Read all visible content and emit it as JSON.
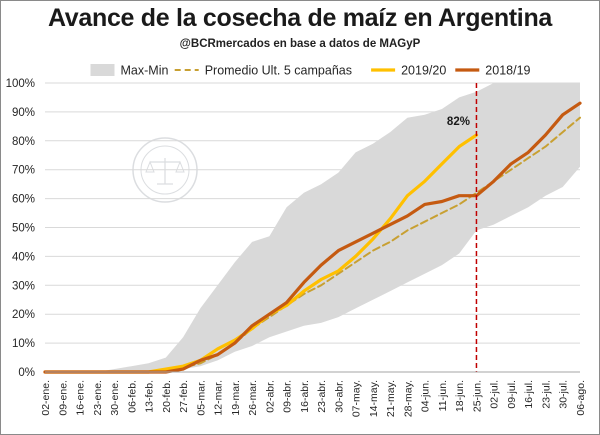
{
  "title": "Avance de la cosecha de maíz en Argentina",
  "subtitle": "@BCRmercados en base a datos de MAGyP",
  "chart_data": {
    "type": "line",
    "title": "Avance de la cosecha de maíz en Argentina",
    "subtitle": "@BCRmercados en base a datos de MAGyP",
    "xlabel": "",
    "ylabel": "",
    "ylim": [
      0,
      100
    ],
    "y_ticks": [
      "0%",
      "10%",
      "20%",
      "30%",
      "40%",
      "50%",
      "60%",
      "70%",
      "80%",
      "90%",
      "100%"
    ],
    "x": [
      "02-ene.",
      "09-ene.",
      "16-ene.",
      "23-ene.",
      "30-ene.",
      "06-feb.",
      "13-feb.",
      "20-feb.",
      "27-feb.",
      "05-mar.",
      "12-mar.",
      "19-mar.",
      "26-mar.",
      "02-abr.",
      "09-abr.",
      "16-abr.",
      "23-abr.",
      "30-abr.",
      "07-may.",
      "14-may.",
      "21-may.",
      "28-may.",
      "04-jun.",
      "11-jun.",
      "18-jun.",
      "25-jun.",
      "02-jul.",
      "09-jul.",
      "16-jul.",
      "23-jul.",
      "30-jul.",
      "06-ago."
    ],
    "band": {
      "name": "Max-Min",
      "color": "#d9d9d9",
      "max": [
        0,
        0,
        0,
        0,
        1,
        2,
        3,
        5,
        12,
        22,
        30,
        38,
        45,
        47,
        57,
        62,
        65,
        69,
        76,
        79,
        83,
        88,
        89,
        91,
        95,
        97,
        100,
        100,
        100,
        100,
        100,
        100
      ],
      "min": [
        0,
        0,
        0,
        0,
        0,
        0,
        0,
        0,
        1,
        2,
        4,
        7,
        9,
        12,
        14,
        16,
        17,
        19,
        22,
        25,
        28,
        31,
        34,
        37,
        41,
        49,
        51,
        54,
        57,
        61,
        64,
        71
      ]
    },
    "series": [
      {
        "name": "Promedio Ult. 5 campañas",
        "color": "#c8a032",
        "dash": true,
        "values": [
          0,
          0,
          0,
          0,
          0,
          0,
          0,
          0.5,
          1.5,
          3,
          6,
          10,
          15,
          19,
          23,
          27,
          30,
          34,
          38,
          42,
          45,
          49,
          52,
          55,
          58,
          62,
          66,
          70,
          74,
          78,
          83,
          88
        ]
      },
      {
        "name": "2019/20",
        "color": "#ffc000",
        "dash": false,
        "values": [
          0,
          0,
          0,
          0,
          0,
          0,
          0,
          1,
          2,
          4,
          8,
          11,
          15,
          20,
          23,
          28,
          32,
          35,
          40,
          46,
          53,
          61,
          66,
          72,
          78,
          82,
          null,
          null,
          null,
          null,
          null,
          null
        ]
      },
      {
        "name": "2018/19",
        "color": "#c55a11",
        "dash": false,
        "values": [
          0,
          0,
          0,
          0,
          0,
          0,
          0,
          0,
          1,
          4,
          6,
          10,
          16,
          20,
          24,
          31,
          37,
          42,
          45,
          48,
          51,
          54,
          58,
          59,
          61,
          61,
          66,
          72,
          76,
          82,
          89,
          93
        ]
      }
    ],
    "data_labels": [
      {
        "series": "2019/20",
        "x": "25-jun.",
        "text": "82%"
      }
    ],
    "reference_line": {
      "x": "25-jun.",
      "color": "#c00000",
      "style": "dashed"
    },
    "grid": "horizontal",
    "legend_position": "top"
  }
}
